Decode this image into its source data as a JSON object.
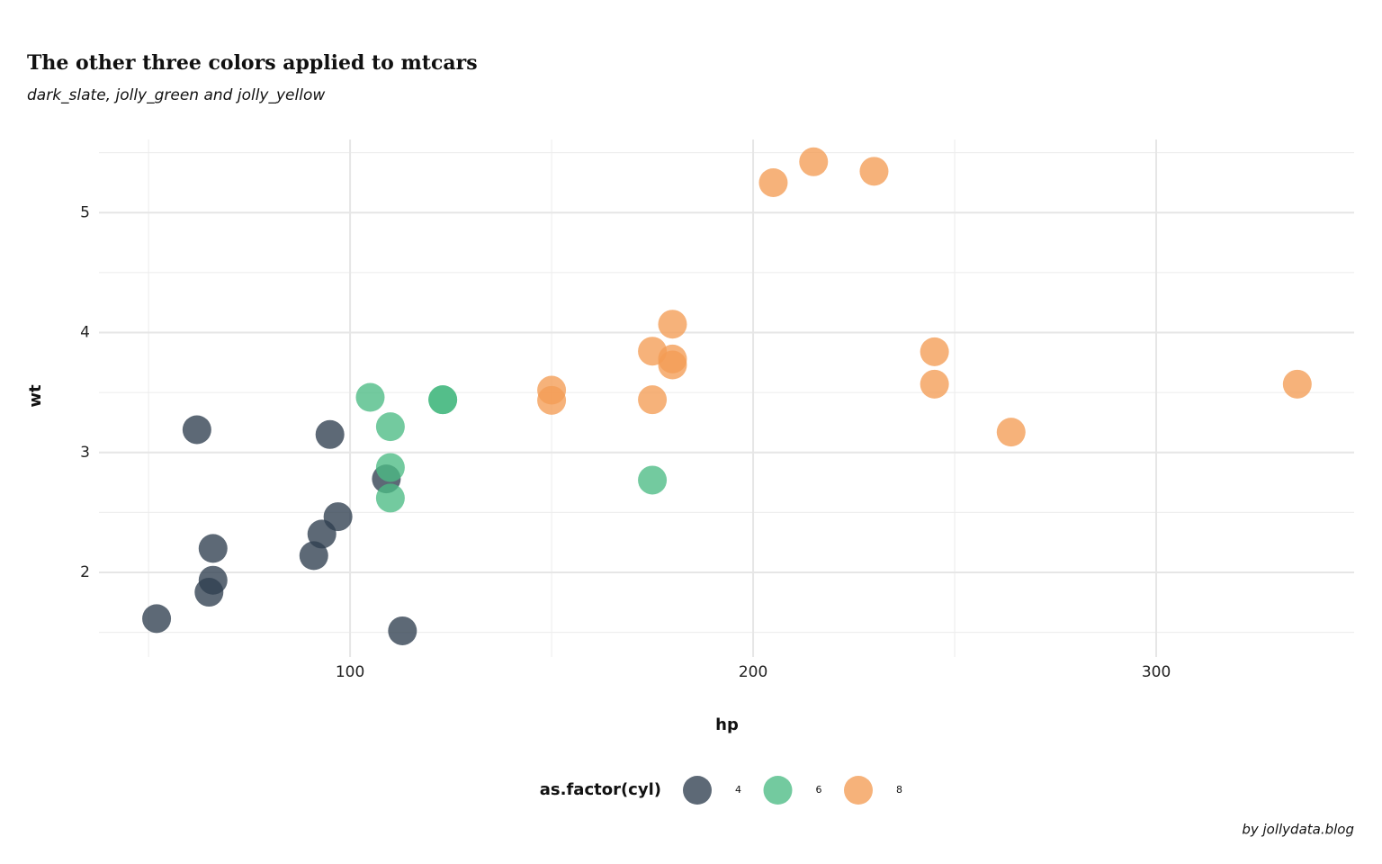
{
  "chart_data": {
    "type": "scatter",
    "title": "The other three colors applied to mtcars",
    "subtitle": "dark_slate, jolly_green and jolly_yellow",
    "x_label": "hp",
    "y_label": "wt",
    "legend_title": "as.factor(cyl)",
    "legend_position": "bottom",
    "caption": "by jollydata.blog",
    "xlim": [
      37.7,
      349.1
    ],
    "xticks": [
      100,
      200,
      300
    ],
    "x_minor_grid": [
      50,
      150,
      250
    ],
    "ylim": [
      1.295,
      5.61
    ],
    "yticks": [
      2,
      3,
      4,
      5
    ],
    "y_minor_grid": [
      1.5,
      2.5,
      3.5,
      4.5,
      5.5
    ],
    "grid": true,
    "series": [
      {
        "name": "4",
        "color": "#2f3f50",
        "x": [
          93,
          62,
          95,
          66,
          52,
          65,
          97,
          66,
          91,
          113,
          109
        ],
        "values": [
          2.32,
          3.19,
          3.15,
          2.2,
          1.615,
          1.835,
          2.465,
          1.935,
          2.14,
          1.513,
          2.78
        ]
      },
      {
        "name": "6",
        "color": "#4cbb84",
        "x": [
          110,
          110,
          110,
          105,
          123,
          123,
          175
        ],
        "values": [
          2.62,
          2.875,
          3.215,
          3.46,
          3.44,
          3.44,
          2.77
        ]
      },
      {
        "name": "8",
        "color": "#f49c55",
        "x": [
          175,
          245,
          180,
          180,
          180,
          205,
          215,
          230,
          150,
          150,
          245,
          175,
          264,
          335
        ],
        "values": [
          3.44,
          3.57,
          4.07,
          3.73,
          3.78,
          5.25,
          5.424,
          5.345,
          3.52,
          3.435,
          3.84,
          3.845,
          3.17,
          3.57
        ]
      }
    ]
  }
}
